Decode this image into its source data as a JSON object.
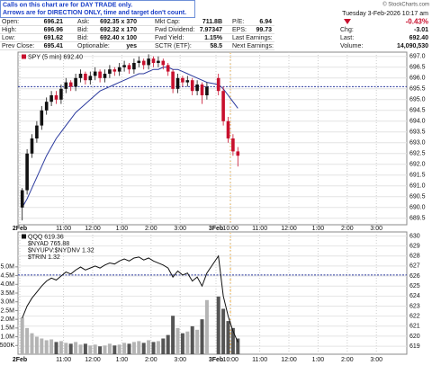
{
  "notice": [
    "Calls on this chart are for DAY TRADE only.",
    "Arrows are for DIRECTION ONLY, time and target don't count."
  ],
  "copyright": "© StockCharts.com",
  "quote": [
    [
      [
        "Open:",
        "696.21"
      ],
      [
        "Ask:",
        "692.35 x 370"
      ],
      [
        "Mkt Cap:",
        "711.8B"
      ],
      [
        "P/E:",
        "6.94"
      ]
    ],
    [
      [
        "High:",
        "696.96"
      ],
      [
        "Bid:",
        "692.32 x 170"
      ],
      [
        "Fwd Dividend:",
        "7.97347"
      ],
      [
        "EPS:",
        "99.73"
      ]
    ],
    [
      [
        "Low:",
        "691.62"
      ],
      [
        "Bid:",
        "692.40 x 100"
      ],
      [
        "Fwd Yield:",
        "1.15%"
      ],
      [
        "Last Earnings:"
      ]
    ],
    [
      [
        "Prev Close:",
        "695.41"
      ],
      [
        "Optionable:",
        "yes"
      ],
      [
        "SCTR (ETF):",
        "58.5"
      ],
      [
        "Next Earnings:"
      ]
    ]
  ],
  "date": "Tuesday  3-Feb-2026  10:17 am",
  "change_pct": "-0.43%",
  "right": [
    [
      "Chg:",
      "-3.01"
    ],
    [
      "Last:",
      "692.40"
    ],
    [
      "Volume:",
      "14,090,530"
    ]
  ],
  "xticks": [
    "2Feb",
    "11:00",
    "12:00",
    "1:00",
    "2:00",
    "3:00",
    "3Feb",
    "10:00",
    "11:00",
    "12:00",
    "1:00",
    "2:00",
    "3:00"
  ],
  "chart_data": [
    {
      "type": "candlestick",
      "legend": "SPY (5 min) 692.40",
      "x": [
        "9:30",
        "9:40",
        "9:50",
        "10:00",
        "10:10",
        "10:20",
        "10:30",
        "10:40",
        "10:50",
        "11:00",
        "11:10",
        "11:20",
        "11:30",
        "11:40",
        "11:50",
        "12:00",
        "12:10",
        "12:20",
        "12:30",
        "12:40",
        "12:50",
        "1:00",
        "1:10",
        "1:20",
        "1:30",
        "1:40",
        "1:50",
        "2:00",
        "2:10",
        "2:20",
        "2:30",
        "2:40",
        "2:50",
        "3:00",
        "3:10",
        "3:20",
        "3:30",
        "3:40",
        "3:50",
        "9:30",
        "9:40",
        "9:50",
        "10:00",
        "10:10"
      ],
      "open": [
        690.0,
        690.8,
        692.5,
        693.2,
        693.8,
        694.5,
        694.9,
        695.2,
        695.0,
        695.5,
        695.8,
        695.6,
        696.0,
        696.2,
        695.9,
        696.1,
        696.3,
        696.0,
        696.2,
        696.4,
        696.3,
        696.5,
        696.6,
        696.4,
        696.7,
        696.8,
        696.6,
        696.9,
        696.7,
        696.8,
        696.6,
        696.3,
        695.5,
        696.0,
        695.8,
        695.9,
        695.4,
        695.7,
        695.2,
        696.0,
        695.4,
        694.0,
        693.2,
        692.6
      ],
      "high": [
        690.9,
        692.7,
        693.4,
        694.0,
        694.7,
        695.1,
        695.4,
        695.4,
        695.7,
        696.0,
        695.9,
        696.2,
        696.4,
        696.3,
        696.3,
        696.5,
        696.4,
        696.4,
        696.6,
        696.5,
        696.7,
        696.8,
        696.7,
        696.9,
        697.0,
        696.9,
        697.1,
        697.0,
        697.0,
        696.9,
        696.7,
        696.4,
        696.2,
        696.1,
        696.1,
        696.0,
        695.9,
        695.8,
        695.8,
        696.2,
        695.6,
        694.2,
        693.4,
        692.8
      ],
      "low": [
        689.4,
        690.6,
        692.3,
        693.0,
        693.6,
        694.3,
        694.7,
        694.8,
        694.8,
        695.3,
        695.4,
        695.4,
        695.8,
        695.7,
        695.7,
        695.9,
        695.8,
        695.8,
        696.0,
        696.1,
        696.1,
        696.3,
        696.2,
        696.2,
        696.5,
        696.4,
        696.4,
        696.5,
        696.5,
        696.4,
        696.1,
        695.3,
        695.3,
        695.6,
        695.6,
        695.2,
        695.2,
        694.8,
        695.0,
        695.2,
        693.8,
        693.0,
        692.4,
        691.9
      ],
      "close": [
        690.8,
        692.5,
        693.2,
        693.8,
        694.5,
        694.9,
        695.2,
        695.0,
        695.5,
        695.8,
        695.6,
        696.0,
        696.2,
        695.9,
        696.1,
        696.3,
        696.0,
        696.2,
        696.4,
        696.3,
        696.5,
        696.6,
        696.4,
        696.7,
        696.8,
        696.6,
        696.9,
        696.7,
        696.8,
        696.6,
        696.3,
        695.5,
        696.0,
        695.8,
        695.9,
        695.4,
        695.7,
        695.2,
        695.6,
        695.4,
        694.0,
        693.2,
        692.6,
        692.4
      ],
      "up_color": "#111111",
      "down_color": "#c8102e",
      "overlay": {
        "color": "#2b3a9e",
        "values": [
          690.0,
          690.4,
          690.9,
          691.4,
          691.9,
          692.4,
          692.8,
          693.2,
          693.5,
          693.8,
          694.1,
          694.4,
          694.6,
          694.8,
          695.0,
          695.2,
          695.4,
          695.5,
          695.6,
          695.7,
          695.8,
          695.9,
          696.0,
          696.1,
          696.2,
          696.2,
          696.3,
          696.4,
          696.4,
          696.5,
          696.5,
          696.4,
          696.4,
          696.3,
          696.2,
          696.1,
          696.0,
          695.9,
          695.8,
          695.7,
          695.5,
          695.2,
          694.9,
          694.6
        ]
      },
      "hline": 695.6,
      "ylim": [
        689.2,
        697.2
      ],
      "yticks": [
        {
          "value": 697,
          "label": "697.0"
        },
        696.5,
        {
          "value": 696,
          "label": "696.0"
        },
        695.5,
        {
          "value": 695,
          "label": "695.0"
        },
        694.5,
        {
          "value": 694,
          "label": "694.0"
        },
        693.5,
        {
          "value": 693,
          "label": "693.0"
        },
        692.5,
        {
          "value": 692,
          "label": "692.0"
        },
        691.5,
        {
          "value": 691,
          "label": "691.0"
        },
        690.5,
        {
          "value": 690,
          "label": "690.0"
        },
        689.5
      ],
      "grid": true
    },
    {
      "type": "line",
      "series": [
        {
          "name": "QQQ 619.36",
          "color": "#111111",
          "values": [
            621.8,
            623.0,
            623.8,
            624.4,
            625.0,
            625.5,
            625.8,
            625.6,
            626.0,
            626.4,
            626.2,
            626.6,
            626.9,
            626.6,
            626.8,
            627.0,
            626.8,
            627.1,
            627.3,
            627.2,
            627.5,
            627.7,
            627.5,
            627.8,
            627.9,
            627.6,
            627.8,
            627.5,
            627.3,
            627.1,
            626.8,
            625.9,
            626.5,
            626.1,
            626.3,
            625.5,
            625.9,
            625.0,
            626.3,
            628.0,
            624.0,
            622.0,
            620.5,
            619.4
          ]
        },
        {
          "axis": "y2",
          "color": "#b4b4b4",
          "values": [
            2100000,
            1500000,
            1200000,
            1000000,
            900000,
            800000,
            850000,
            700000,
            750000,
            650000,
            600000,
            700000,
            550000,
            600000,
            500000,
            550000,
            450000,
            500000,
            600000,
            500000,
            550000,
            650000,
            600000,
            700000,
            750000,
            650000,
            800000,
            700000,
            750000,
            900000,
            1100000,
            2200000,
            1500000,
            1200000,
            1300000,
            1600000,
            1400000,
            2000000,
            3100000,
            3300000,
            2600000,
            1900000,
            1500000,
            900000
          ]
        }
      ],
      "legend_extra": [
        "$NYAD 765.88",
        "$NYUPV:$NYDNV 1.32",
        "$TRIN 1.32"
      ],
      "hline": 626.1,
      "ylim": [
        618.2,
        630.4
      ],
      "yticks": [
        630,
        629,
        628,
        627,
        626,
        625,
        624,
        623,
        622,
        621,
        620,
        619
      ],
      "y2lim": [
        0,
        7000000
      ],
      "y2ticks": [
        {
          "value": 5000000,
          "label": "5.0M"
        },
        {
          "value": 4500000,
          "label": "4.5M"
        },
        {
          "value": 4000000,
          "label": "4.0M"
        },
        {
          "value": 3500000,
          "label": "3.5M"
        },
        {
          "value": 3000000,
          "label": "3.0M"
        },
        {
          "value": 2500000,
          "label": "2.5M"
        },
        {
          "value": 2000000,
          "label": "2.0M"
        },
        {
          "value": 1500000,
          "label": "1.5M"
        },
        {
          "value": 1000000,
          "label": "1.0M"
        },
        {
          "value": 500000,
          "label": "500K"
        }
      ],
      "grid": true
    }
  ]
}
